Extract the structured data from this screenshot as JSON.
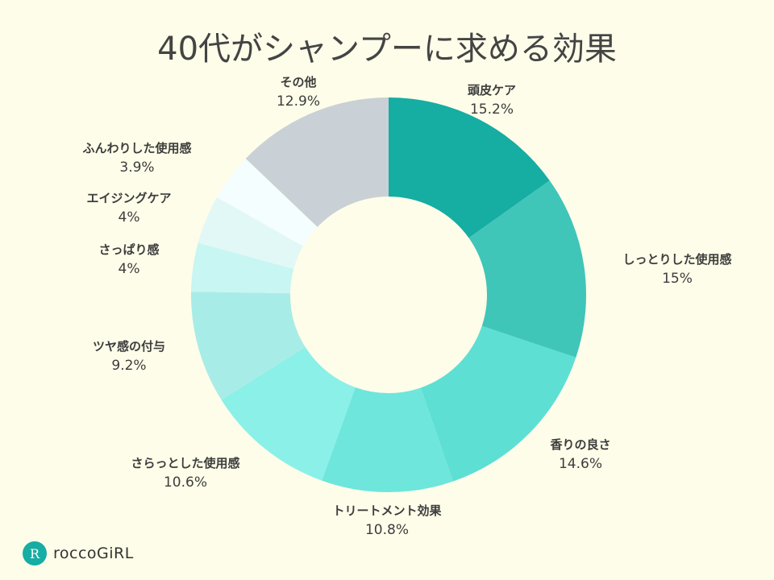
{
  "chart_data": {
    "type": "pie",
    "donut": true,
    "title": "40代がシャンプーに求める効果",
    "start": "top",
    "direction": "clockwise",
    "slices": [
      {
        "label": "頭皮ケア",
        "value": 15.2,
        "display": "15.2%",
        "color": "#16ada3"
      },
      {
        "label": "しっとりした使用感",
        "value": 15,
        "display": "15%",
        "color": "#40c5b9"
      },
      {
        "label": "香りの良さ",
        "value": 14.6,
        "display": "14.6%",
        "color": "#5ddfd4"
      },
      {
        "label": "トリートメント効果",
        "value": 10.8,
        "display": "10.8%",
        "color": "#6ee6dc"
      },
      {
        "label": "さらっとした使用感",
        "value": 10.6,
        "display": "10.6%",
        "color": "#8af0e8"
      },
      {
        "label": "ツヤ感の付与",
        "value": 9.2,
        "display": "9.2%",
        "color": "#a8ece8"
      },
      {
        "label": "さっぱり感",
        "value": 4,
        "display": "4%",
        "color": "#c8f6f2"
      },
      {
        "label": "エイジングケア",
        "value": 4,
        "display": "4%",
        "color": "#e2f8f6"
      },
      {
        "label": "ふんわりした使用感",
        "value": 3.9,
        "display": "3.9%",
        "color": "#f5fefe"
      },
      {
        "label": "その他",
        "value": 12.9,
        "display": "12.9%",
        "color": "#c9d1d6"
      }
    ]
  },
  "background": "#fefde9",
  "brand": {
    "name": "roccoGiRL",
    "mark": "R",
    "color": "#16ada3"
  }
}
